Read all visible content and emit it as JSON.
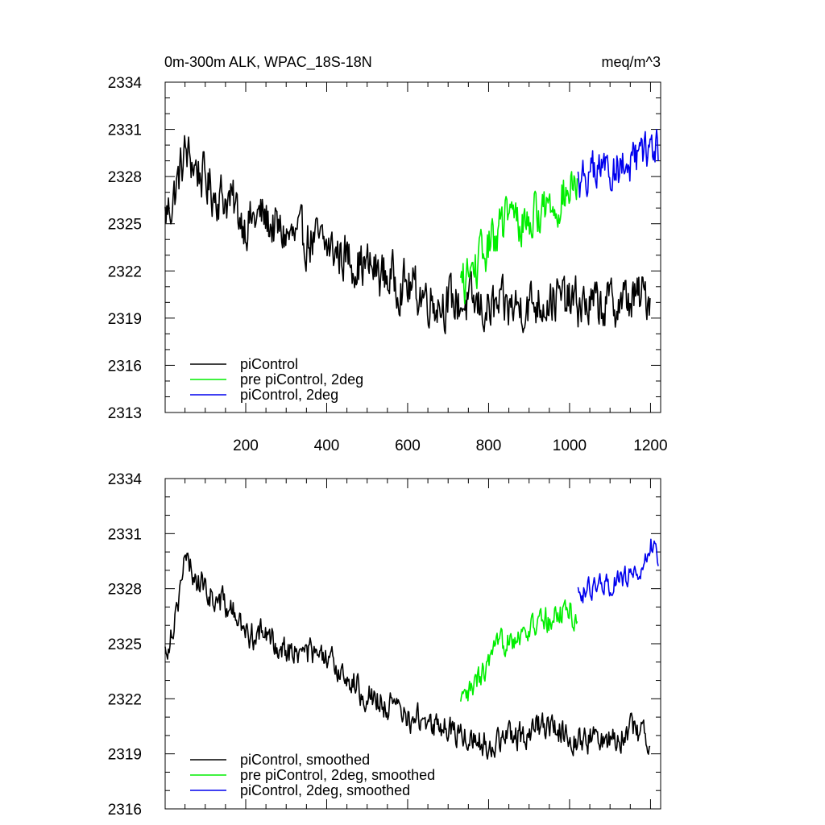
{
  "chart_data": [
    {
      "type": "line",
      "title_left": "0m-300m ALK, WPAC_18S-18N",
      "title_right": "meq/m^3",
      "xlim": [
        1,
        1225
      ],
      "ylim": [
        2313,
        2334
      ],
      "yticks": [
        "2313",
        "2316",
        "2319",
        "2322",
        "2325",
        "2328",
        "2331",
        "2334"
      ],
      "xticks": [
        "200",
        "400",
        "600",
        "800",
        "1000",
        "1200"
      ],
      "series": [
        {
          "name": "piControl",
          "color": "#000000",
          "x_range": [
            1,
            1200
          ],
          "anchors": [
            [
              1,
              2325.5
            ],
            [
              20,
              2326.5
            ],
            [
              50,
              2329.5
            ],
            [
              80,
              2328.5
            ],
            [
              120,
              2327
            ],
            [
              160,
              2326.5
            ],
            [
              200,
              2325
            ],
            [
              240,
              2325.5
            ],
            [
              280,
              2324.5
            ],
            [
              320,
              2324
            ],
            [
              360,
              2324
            ],
            [
              400,
              2323.5
            ],
            [
              440,
              2323
            ],
            [
              480,
              2322.5
            ],
            [
              520,
              2322
            ],
            [
              560,
              2321.5
            ],
            [
              600,
              2321
            ],
            [
              640,
              2320.5
            ],
            [
              680,
              2320
            ],
            [
              720,
              2320
            ],
            [
              760,
              2319.8
            ],
            [
              800,
              2319.5
            ],
            [
              840,
              2319.6
            ],
            [
              880,
              2319.8
            ],
            [
              920,
              2320
            ],
            [
              960,
              2320.3
            ],
            [
              1000,
              2320
            ],
            [
              1040,
              2319.8
            ],
            [
              1080,
              2319.8
            ],
            [
              1120,
              2320
            ],
            [
              1160,
              2320.2
            ],
            [
              1200,
              2320.5
            ]
          ],
          "noise": 1.8
        },
        {
          "name": "pre piControl, 2deg",
          "color": "#00ee00",
          "x_range": [
            731,
            1020
          ],
          "anchors": [
            [
              731,
              2321
            ],
            [
              760,
              2322
            ],
            [
              790,
              2323
            ],
            [
              820,
              2324.5
            ],
            [
              850,
              2325.5
            ],
            [
              880,
              2325
            ],
            [
              910,
              2325.5
            ],
            [
              940,
              2326
            ],
            [
              970,
              2326.5
            ],
            [
              1000,
              2327
            ],
            [
              1020,
              2327.5
            ]
          ],
          "noise": 1.7
        },
        {
          "name": "piControl, 2deg",
          "color": "#0000ee",
          "x_range": [
            1021,
            1220
          ],
          "anchors": [
            [
              1021,
              2327.8
            ],
            [
              1060,
              2328.3
            ],
            [
              1100,
              2328.5
            ],
            [
              1140,
              2328.7
            ],
            [
              1180,
              2329
            ],
            [
              1200,
              2330
            ],
            [
              1220,
              2329.5
            ]
          ],
          "noise": 1.5
        }
      ],
      "legend": [
        "piControl",
        "pre piControl, 2deg",
        "piControl, 2deg"
      ]
    },
    {
      "type": "line",
      "xlim": [
        1,
        1225
      ],
      "ylim": [
        2316,
        2334
      ],
      "yticks": [
        "2316",
        "2319",
        "2322",
        "2325",
        "2328",
        "2331",
        "2334"
      ],
      "series": [
        {
          "name": "piControl, smoothed",
          "color": "#000000",
          "x_range": [
            1,
            1200
          ],
          "anchors": [
            [
              1,
              2324.5
            ],
            [
              20,
              2326
            ],
            [
              50,
              2329.5
            ],
            [
              80,
              2328.5
            ],
            [
              120,
              2327.5
            ],
            [
              160,
              2327
            ],
            [
              200,
              2325.5
            ],
            [
              240,
              2325.5
            ],
            [
              280,
              2325
            ],
            [
              320,
              2324.5
            ],
            [
              360,
              2324.5
            ],
            [
              400,
              2324
            ],
            [
              440,
              2323.5
            ],
            [
              480,
              2322.5
            ],
            [
              520,
              2322
            ],
            [
              560,
              2321.5
            ],
            [
              600,
              2321
            ],
            [
              640,
              2320.8
            ],
            [
              680,
              2320.5
            ],
            [
              720,
              2320.2
            ],
            [
              760,
              2319.8
            ],
            [
              800,
              2319.5
            ],
            [
              840,
              2319.8
            ],
            [
              880,
              2320
            ],
            [
              920,
              2320.5
            ],
            [
              960,
              2320.5
            ],
            [
              1000,
              2320
            ],
            [
              1040,
              2319.8
            ],
            [
              1080,
              2319.8
            ],
            [
              1120,
              2320
            ],
            [
              1160,
              2320.3
            ],
            [
              1200,
              2320
            ]
          ],
          "noise": 0.9
        },
        {
          "name": "pre piControl, 2deg, smoothed",
          "color": "#00ee00",
          "x_range": [
            731,
            1020
          ],
          "anchors": [
            [
              731,
              2321.5
            ],
            [
              760,
              2322.5
            ],
            [
              790,
              2323.5
            ],
            [
              820,
              2324.5
            ],
            [
              850,
              2325.5
            ],
            [
              880,
              2325.5
            ],
            [
              910,
              2326
            ],
            [
              940,
              2326.2
            ],
            [
              970,
              2326.5
            ],
            [
              1000,
              2327
            ],
            [
              1020,
              2326
            ]
          ],
          "noise": 0.9
        },
        {
          "name": "piControl, 2deg, smoothed",
          "color": "#0000ee",
          "x_range": [
            1021,
            1220
          ],
          "anchors": [
            [
              1021,
              2327.8
            ],
            [
              1060,
              2328
            ],
            [
              1100,
              2328.3
            ],
            [
              1140,
              2328.6
            ],
            [
              1180,
              2329
            ],
            [
              1200,
              2330.5
            ],
            [
              1220,
              2329.3
            ]
          ],
          "noise": 0.7
        }
      ],
      "legend": [
        "piControl, smoothed",
        "pre piControl, 2deg, smoothed",
        "piControl, 2deg, smoothed"
      ]
    }
  ]
}
